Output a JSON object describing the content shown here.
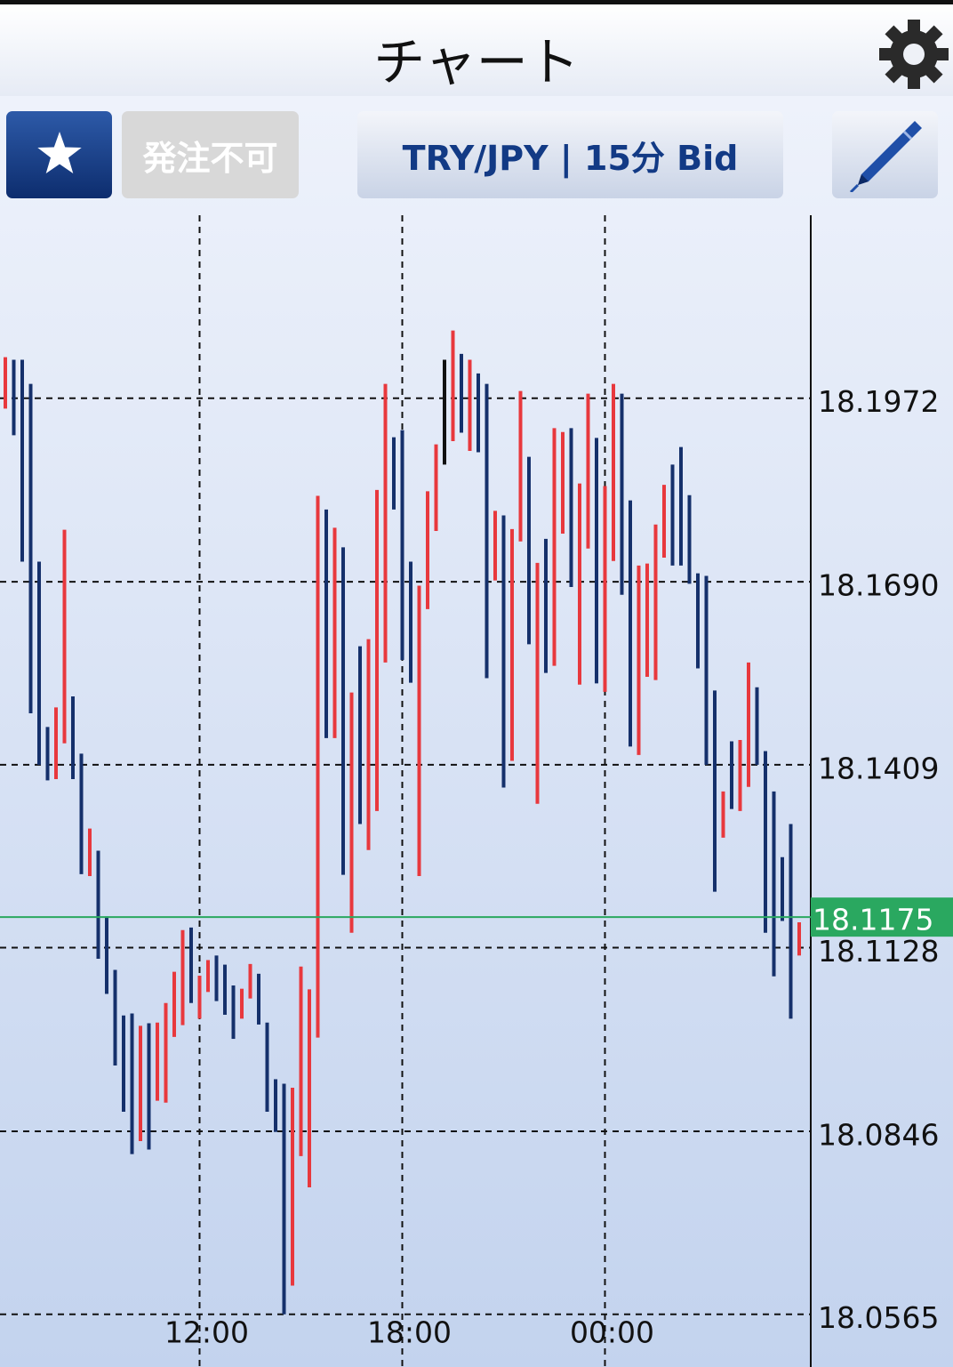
{
  "header": {
    "title": "チャート"
  },
  "toolbar": {
    "order_button": "発注不可",
    "symbol_button": "TRY/JPY | 15分 Bid"
  },
  "chart_data": {
    "type": "hlbar",
    "categories": [
      null,
      null,
      null,
      null,
      null,
      null,
      null,
      null,
      null,
      null,
      null,
      null,
      null,
      null,
      null,
      null,
      null,
      null,
      null,
      null,
      null,
      null,
      null,
      "12:00",
      null,
      null,
      null,
      null,
      null,
      null,
      null,
      null,
      null,
      null,
      null,
      null,
      null,
      null,
      null,
      null,
      null,
      null,
      null,
      null,
      null,
      null,
      null,
      "18:00",
      null,
      null,
      null,
      null,
      null,
      null,
      null,
      null,
      null,
      null,
      null,
      null,
      null,
      null,
      null,
      null,
      null,
      null,
      null,
      null,
      null,
      null,
      null,
      "00:00",
      null,
      null,
      null,
      null,
      null,
      null,
      null,
      null,
      null,
      null,
      null,
      null,
      null,
      null,
      null,
      null,
      null,
      null,
      null,
      null,
      null,
      null,
      null
    ],
    "high": [
      18.2035,
      18.2031,
      18.2031,
      18.1994,
      18.1721,
      18.1467,
      18.1497,
      18.177,
      18.1514,
      18.1426,
      18.1311,
      18.1277,
      18.1176,
      18.1094,
      18.1024,
      18.1027,
      18.1008,
      18.1012,
      18.1013,
      18.1043,
      18.1091,
      18.1155,
      18.1159,
      18.1085,
      18.1109,
      18.1116,
      18.1102,
      18.107,
      18.1065,
      18.1103,
      18.1088,
      18.1013,
      18.0926,
      18.0919,
      18.0913,
      18.1099,
      18.1064,
      18.1822,
      18.1801,
      18.1773,
      18.1743,
      18.152,
      18.1591,
      18.1602,
      18.1831,
      18.1994,
      18.1912,
      18.1923,
      18.1721,
      18.1684,
      18.1829,
      18.1901,
      18.2031,
      18.2076,
      18.204,
      18.2031,
      18.201,
      18.1994,
      18.1799,
      18.1792,
      18.1771,
      18.1983,
      18.1882,
      18.1719,
      18.1756,
      18.1926,
      18.192,
      18.1926,
      18.1841,
      18.1979,
      18.1911,
      18.1837,
      18.1994,
      18.1979,
      18.1815,
      18.1715,
      18.1718,
      18.1778,
      18.1839,
      18.187,
      18.1897,
      18.1823,
      18.1703,
      18.1699,
      18.1523,
      18.1368,
      18.1445,
      18.1447,
      18.1566,
      18.1528,
      18.143,
      18.1368,
      18.1267,
      18.1318,
      18.1167
    ],
    "low": [
      18.1956,
      18.1915,
      18.1721,
      18.1488,
      18.1409,
      18.1385,
      18.1387,
      18.1442,
      18.1387,
      18.1241,
      18.1238,
      18.1111,
      18.1057,
      18.0947,
      18.0876,
      18.0811,
      18.0831,
      18.0818,
      18.0893,
      18.089,
      18.0991,
      18.1009,
      18.1043,
      18.1019,
      18.106,
      18.1046,
      18.1025,
      18.0988,
      18.1019,
      18.105,
      18.101,
      18.0876,
      18.0845,
      18.0565,
      18.0609,
      18.0808,
      18.076,
      18.099,
      18.145,
      18.145,
      18.124,
      18.1151,
      18.1318,
      18.1278,
      18.1338,
      18.1566,
      18.1801,
      18.157,
      18.1535,
      18.1238,
      18.1648,
      18.1768,
      18.187,
      18.1906,
      18.1919,
      18.1891,
      18.1889,
      18.1542,
      18.1692,
      18.1374,
      18.1415,
      18.1752,
      18.1594,
      18.1349,
      18.155,
      18.1561,
      18.1764,
      18.1682,
      18.1532,
      18.1741,
      18.1534,
      18.1521,
      18.1722,
      18.167,
      18.1437,
      18.1424,
      18.1544,
      18.1539,
      18.1727,
      18.1715,
      18.1715,
      18.1687,
      18.1557,
      18.1409,
      18.1214,
      18.1297,
      18.1341,
      18.1338,
      18.1375,
      18.1409,
      18.1151,
      18.1084,
      18.1169,
      18.1019,
      18.1116
    ],
    "colors": [
      "#e8383d",
      "#15306b",
      "#15306b",
      "#15306b",
      "#15306b",
      "#15306b",
      "#e8383d",
      "#e8383d",
      "#15306b",
      "#15306b",
      "#e8383d",
      "#15306b",
      "#15306b",
      "#15306b",
      "#15306b",
      "#15306b",
      "#e8383d",
      "#15306b",
      "#e8383d",
      "#e8383d",
      "#e8383d",
      "#e8383d",
      "#15306b",
      "#e8383d",
      "#e8383d",
      "#15306b",
      "#15306b",
      "#15306b",
      "#e8383d",
      "#e8383d",
      "#15306b",
      "#15306b",
      "#15306b",
      "#15306b",
      "#e8383d",
      "#e8383d",
      "#e8383d",
      "#e8383d",
      "#15306b",
      "#e8383d",
      "#15306b",
      "#e8383d",
      "#15306b",
      "#e8383d",
      "#e8383d",
      "#e8383d",
      "#15306b",
      "#15306b",
      "#15306b",
      "#e8383d",
      "#e8383d",
      "#e8383d",
      "#111111",
      "#e8383d",
      "#15306b",
      "#e8383d",
      "#15306b",
      "#15306b",
      "#e8383d",
      "#15306b",
      "#e8383d",
      "#e8383d",
      "#15306b",
      "#e8383d",
      "#15306b",
      "#e8383d",
      "#e8383d",
      "#15306b",
      "#e8383d",
      "#e8383d",
      "#15306b",
      "#e8383d",
      "#e8383d",
      "#15306b",
      "#15306b",
      "#e8383d",
      "#e8383d",
      "#e8383d",
      "#e8383d",
      "#15306b",
      "#15306b",
      "#15306b",
      "#15306b",
      "#15306b",
      "#15306b",
      "#e8383d",
      "#15306b",
      "#e8383d",
      "#e8383d",
      "#15306b",
      "#15306b",
      "#15306b",
      "#15306b",
      "#15306b",
      "#e8383d"
    ],
    "ylim": [
      18.0484,
      18.2253
    ],
    "yticks": [
      18.1972,
      {
        "value": 18.169,
        "label": "18.1690"
      },
      18.1409,
      18.1128,
      18.0846,
      18.0565
    ],
    "grid": true,
    "current_price": 18.1175,
    "current_price_color": "#2aa860"
  }
}
